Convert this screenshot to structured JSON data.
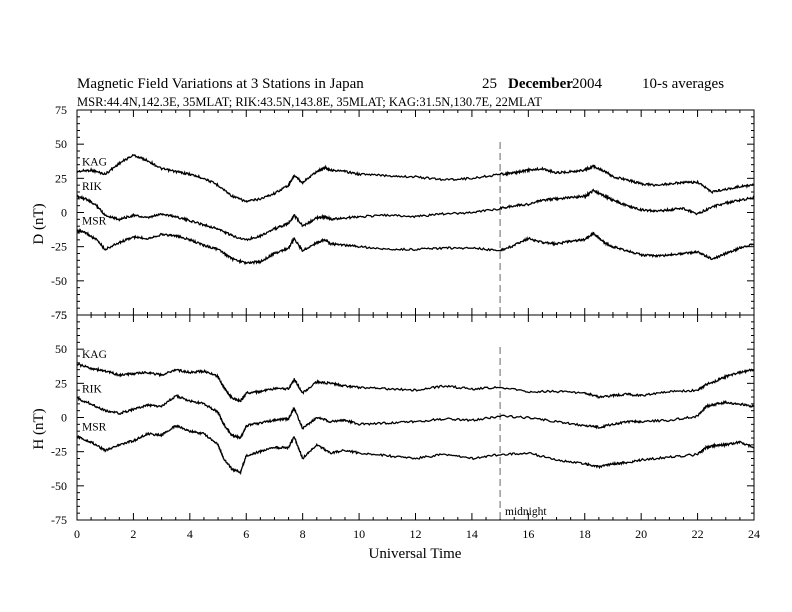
{
  "header": {
    "title": "Magnetic Field Variations at 3 Stations in Japan",
    "date_day": "25",
    "date_month": "December",
    "date_year": "2004",
    "averaging": "10-s averages",
    "stations_line": "MSR:44.4N,142.3E, 35MLAT;   RIK:43.5N,143.8E, 35MLAT;   KAG:31.5N,130.7E, 22MLAT"
  },
  "chart_data": [
    {
      "type": "line",
      "panel": "D",
      "ylabel": "D (nT)",
      "xlabel": "",
      "xlim": [
        0,
        24
      ],
      "ylim": [
        -75,
        75
      ],
      "yticks": [
        -75,
        -50,
        -25,
        0,
        25,
        50,
        75
      ],
      "xticks": [
        0,
        2,
        4,
        6,
        8,
        10,
        12,
        14,
        16,
        18,
        20,
        22,
        24
      ],
      "series": [
        {
          "name": "KAG",
          "x": [
            0,
            0.5,
            1,
            1.5,
            2,
            2.5,
            3,
            3.5,
            4,
            4.5,
            5,
            5.5,
            6,
            6.5,
            7,
            7.5,
            7.7,
            8,
            8.5,
            8.8,
            9,
            9.5,
            10,
            11,
            12,
            13,
            14,
            15,
            15.5,
            16,
            16.5,
            17,
            17.5,
            18,
            18.3,
            18.7,
            19,
            19.5,
            20,
            20.5,
            21,
            21.5,
            22,
            22.5,
            23,
            23.5,
            24
          ],
          "y": [
            30,
            31,
            28,
            36,
            42,
            38,
            32,
            30,
            28,
            25,
            20,
            12,
            8,
            10,
            14,
            20,
            27,
            22,
            30,
            33,
            31,
            30,
            28,
            27,
            26,
            24,
            25,
            28,
            29,
            31,
            32,
            29,
            30,
            31,
            34,
            30,
            26,
            24,
            21,
            20,
            21,
            22,
            22,
            15,
            17,
            19,
            20
          ]
        },
        {
          "name": "RIK",
          "x": [
            0,
            0.3,
            0.7,
            1,
            1.5,
            2,
            2.5,
            3,
            3.5,
            4,
            4.5,
            5,
            5.5,
            6,
            6.5,
            7,
            7.5,
            7.7,
            8,
            8.5,
            8.8,
            9,
            9.5,
            10,
            11,
            12,
            13,
            14,
            15,
            15.5,
            16,
            16.5,
            17,
            17.5,
            18,
            18.3,
            18.7,
            19,
            19.5,
            20,
            20.5,
            21,
            21.5,
            22,
            22.5,
            23,
            23.5,
            24
          ],
          "y": [
            12,
            10,
            5,
            -2,
            -5,
            -2,
            -4,
            -1,
            -3,
            -6,
            -9,
            -12,
            -17,
            -20,
            -17,
            -12,
            -8,
            -2,
            -10,
            -4,
            -3,
            -5,
            -4,
            -3,
            -2,
            -3,
            -1,
            0,
            3,
            5,
            6,
            9,
            10,
            11,
            12,
            16,
            12,
            9,
            5,
            2,
            1,
            2,
            3,
            -1,
            4,
            7,
            9,
            11
          ]
        },
        {
          "name": "MSR",
          "x": [
            0,
            0.3,
            0.7,
            1,
            1.5,
            2,
            2.5,
            3,
            3.5,
            4,
            4.5,
            5,
            5.5,
            6,
            6.5,
            7,
            7.5,
            7.7,
            8,
            8.5,
            8.8,
            9,
            9.5,
            10,
            11,
            12,
            13,
            14,
            15,
            15.5,
            16,
            16.5,
            17,
            17.5,
            18,
            18.3,
            18.7,
            19,
            19.5,
            20,
            20.5,
            21,
            21.5,
            22,
            22.5,
            23,
            23.5,
            24
          ],
          "y": [
            -13,
            -15,
            -20,
            -27,
            -22,
            -18,
            -19,
            -16,
            -17,
            -20,
            -24,
            -27,
            -34,
            -37,
            -36,
            -30,
            -26,
            -19,
            -28,
            -22,
            -20,
            -23,
            -24,
            -25,
            -27,
            -27,
            -26,
            -26,
            -28,
            -24,
            -19,
            -22,
            -23,
            -21,
            -20,
            -15,
            -22,
            -25,
            -28,
            -31,
            -32,
            -31,
            -30,
            -29,
            -34,
            -30,
            -26,
            -23
          ]
        }
      ]
    },
    {
      "type": "line",
      "panel": "H",
      "ylabel": "H (nT)",
      "xlabel": "Universal Time",
      "xlim": [
        0,
        24
      ],
      "ylim": [
        -75,
        75
      ],
      "yticks": [
        -75,
        -50,
        -25,
        0,
        25,
        50,
        75
      ],
      "xticks": [
        0,
        2,
        4,
        6,
        8,
        10,
        12,
        14,
        16,
        18,
        20,
        22,
        24
      ],
      "annotation": {
        "x": 15,
        "label": "midnight"
      },
      "series": [
        {
          "name": "KAG",
          "x": [
            0,
            0.5,
            1,
            1.5,
            2,
            2.5,
            3,
            3.5,
            4,
            4.5,
            5,
            5.2,
            5.5,
            5.8,
            6,
            6.5,
            7,
            7.5,
            7.7,
            8,
            8.5,
            9,
            9.5,
            10,
            11,
            12,
            13,
            14,
            15,
            16,
            17,
            18,
            18.5,
            19,
            19.5,
            20,
            21,
            22,
            22.3,
            22.7,
            23,
            23.5,
            24
          ],
          "y": [
            39,
            36,
            34,
            31,
            32,
            33,
            31,
            35,
            33,
            34,
            30,
            22,
            14,
            12,
            18,
            19,
            21,
            21,
            28,
            18,
            26,
            25,
            23,
            22,
            21,
            20,
            23,
            21,
            22,
            19,
            19,
            18,
            15,
            16,
            17,
            16,
            19,
            20,
            24,
            27,
            30,
            33,
            35
          ]
        },
        {
          "name": "RIK",
          "x": [
            0,
            0.5,
            1,
            1.5,
            2,
            2.5,
            3,
            3.5,
            4,
            4.5,
            5,
            5.2,
            5.5,
            5.8,
            6,
            6.5,
            7,
            7.5,
            7.7,
            8,
            8.5,
            9,
            9.5,
            10,
            11,
            12,
            13,
            14,
            15,
            16,
            17,
            18,
            18.5,
            19,
            19.5,
            20,
            21,
            22,
            22.3,
            22.7,
            23,
            23.5,
            24
          ],
          "y": [
            14,
            10,
            5,
            3,
            6,
            9,
            8,
            16,
            12,
            10,
            4,
            -5,
            -13,
            -15,
            -6,
            -4,
            -2,
            -1,
            7,
            -8,
            0,
            -3,
            -2,
            -5,
            -4,
            -3,
            -1,
            -2,
            1,
            0,
            -3,
            -6,
            -7,
            -5,
            -3,
            -3,
            -2,
            1,
            8,
            10,
            11,
            10,
            8
          ]
        },
        {
          "name": "MSR",
          "x": [
            0,
            0.5,
            1,
            1.5,
            2,
            2.5,
            3,
            3.5,
            4,
            4.5,
            5,
            5.2,
            5.5,
            5.8,
            6,
            6.5,
            7,
            7.5,
            7.7,
            8,
            8.5,
            9,
            9.5,
            10,
            11,
            12,
            13,
            14,
            15,
            16,
            17,
            18,
            18.5,
            19,
            19.5,
            20,
            21,
            22,
            22.3,
            22.7,
            23,
            23.5,
            24
          ],
          "y": [
            -14,
            -18,
            -24,
            -20,
            -17,
            -12,
            -13,
            -6,
            -10,
            -12,
            -20,
            -30,
            -38,
            -40,
            -28,
            -25,
            -22,
            -22,
            -14,
            -30,
            -20,
            -26,
            -24,
            -26,
            -28,
            -30,
            -27,
            -30,
            -27,
            -26,
            -31,
            -34,
            -36,
            -34,
            -33,
            -31,
            -29,
            -27,
            -22,
            -20,
            -20,
            -18,
            -22
          ]
        }
      ]
    }
  ]
}
